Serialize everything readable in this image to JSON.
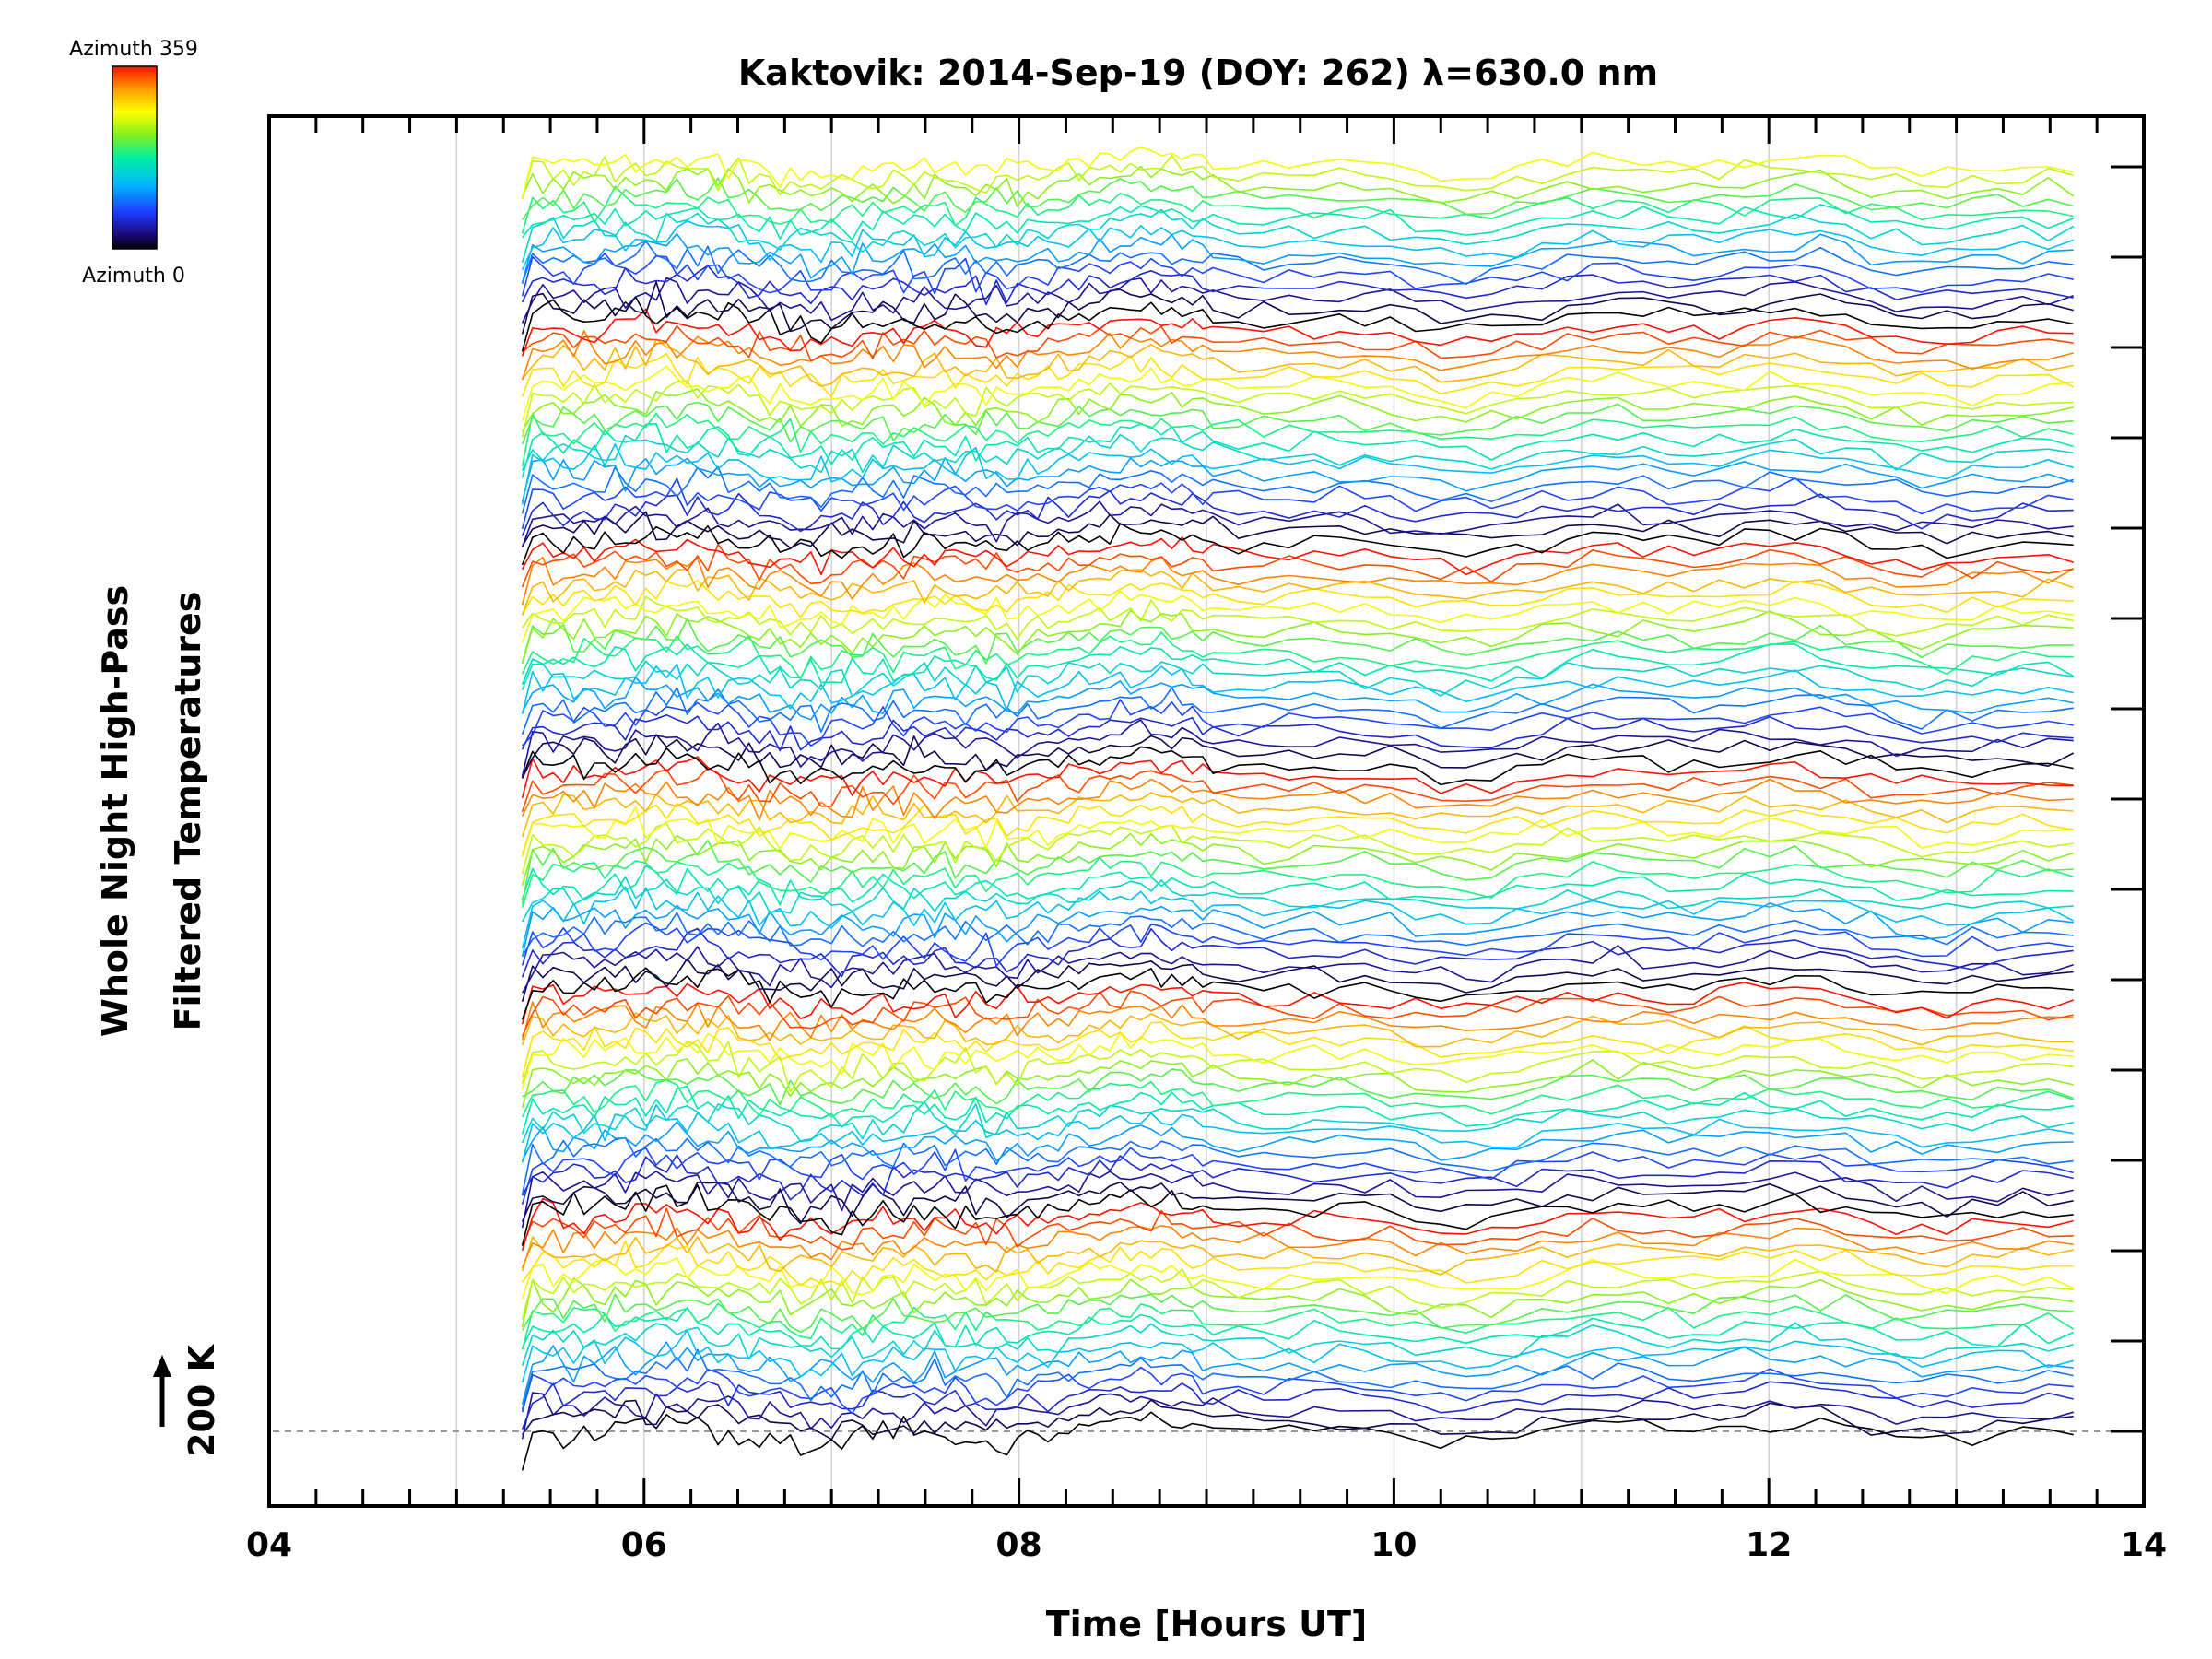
{
  "chart_data": {
    "type": "line",
    "title": "Kaktovik: 2014-Sep-19 (DOY: 262) λ=630.0 nm",
    "xlabel": "Time [Hours UT]",
    "ylabel_line1": "Whole Night High-Pass",
    "ylabel_line2": "Filtered Temperatures",
    "xlim": [
      4,
      14
    ],
    "x_ticks": [
      4,
      6,
      8,
      10,
      12,
      14
    ],
    "x_tick_labels": [
      "04",
      "06",
      "08",
      "10",
      "12",
      "14"
    ],
    "time_range": [
      5.35,
      13.75
    ],
    "num_traces": 115,
    "trace_offset_K": 200,
    "scale_bar_label": "200 K",
    "colorbar": {
      "top_label": "Azimuth 359",
      "bottom_label": "Azimuth 0",
      "colormap": "rainbow",
      "range": [
        0,
        359
      ]
    },
    "gridlines": "vertical",
    "azimuth_cycle_length": 20,
    "baseline_dashed": true
  }
}
